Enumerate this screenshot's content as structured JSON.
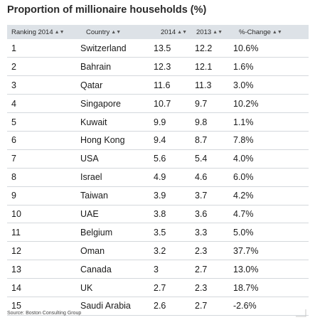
{
  "title": "Proportion of millionaire households (%)",
  "headers": [
    "Ranking 2014",
    "Country",
    "2014",
    "2013",
    "%-Change"
  ],
  "sort_icon": "sort-arrows-icon",
  "rows": [
    [
      "1",
      "Switzerland",
      "13.5",
      "12.2",
      "10.6%"
    ],
    [
      "2",
      "Bahrain",
      "12.3",
      "12.1",
      "1.6%"
    ],
    [
      "3",
      "Qatar",
      "11.6",
      "11.3",
      "3.0%"
    ],
    [
      "4",
      "Singapore",
      "10.7",
      "9.7",
      "10.2%"
    ],
    [
      "5",
      "Kuwait",
      "9.9",
      "9.8",
      "1.1%"
    ],
    [
      "6",
      "Hong Kong",
      "9.4",
      "8.7",
      "7.8%"
    ],
    [
      "7",
      "USA",
      "5.6",
      "5.4",
      "4.0%"
    ],
    [
      "8",
      "Israel",
      "4.9",
      "4.6",
      "6.0%"
    ],
    [
      "9",
      "Taiwan",
      "3.9",
      "3.7",
      "4.2%"
    ],
    [
      "10",
      "UAE",
      "3.8",
      "3.6",
      "4.7%"
    ],
    [
      "11",
      "Belgium",
      "3.5",
      "3.3",
      "5.0%"
    ],
    [
      "12",
      "Oman",
      "3.2",
      "2.3",
      "37.7%"
    ],
    [
      "13",
      "Canada",
      "3",
      "2.7",
      "13.0%"
    ],
    [
      "14",
      "UK",
      "2.7",
      "2.3",
      "18.7%"
    ],
    [
      "15",
      "Saudi Arabia",
      "2.6",
      "2.7",
      "-2.6%"
    ]
  ],
  "source": "Source: Boston Consulting Group",
  "colors": {
    "header_bg": "#dde2e7",
    "row_border": "#d4d8dc"
  }
}
